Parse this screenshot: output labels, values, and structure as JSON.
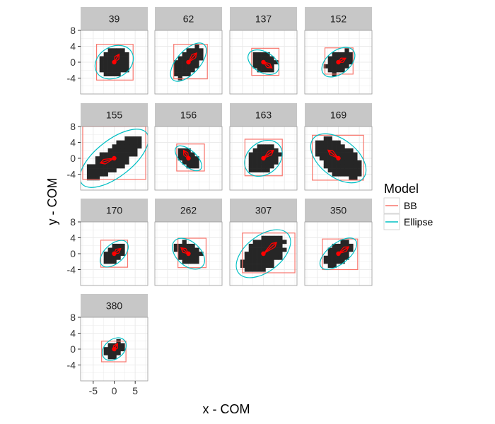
{
  "chart_data": {
    "type": "faceted-shape-plot",
    "xlabel": "x - COM",
    "ylabel": "y - COM",
    "xlim": [
      -8,
      8
    ],
    "ylim": [
      -8,
      8
    ],
    "x_ticks": [
      -5,
      0,
      5
    ],
    "x_tick_labels": [
      "-5",
      "0",
      "5"
    ],
    "y_ticks": [
      8,
      4,
      0,
      -4
    ],
    "y_tick_labels": [
      "8",
      "4",
      "0",
      "-4"
    ],
    "legend": {
      "title": "Model",
      "position": "right",
      "entries": [
        {
          "label": "BB",
          "color": "#F8766D"
        },
        {
          "label": "Ellipse",
          "color": "#00BFC4"
        }
      ]
    },
    "colors": {
      "bb": "#F8766D",
      "ellipse": "#00BFC4",
      "fill": "#262626",
      "arrow": "#FF0000",
      "strip": "#C7C7C7",
      "grid": "#ECECEC"
    },
    "panels": [
      {
        "id": "39",
        "bb": [
          -4.2,
          4.5,
          -4.5,
          4.5
        ],
        "ellipse": {
          "cx": 0,
          "cy": 0,
          "rx": 4.8,
          "ry": 3.9,
          "angle": 30
        },
        "arrow_angle": 60,
        "arrow_len": 2.3,
        "blob": {
          "rx": 4.2,
          "ry": 3.6,
          "angle": 30
        }
      },
      {
        "id": "62",
        "bb": [
          -3.5,
          4.5,
          -4.2,
          4.5
        ],
        "ellipse": {
          "cx": 0,
          "cy": 0,
          "rx": 5.6,
          "ry": 2.9,
          "angle": 48
        },
        "arrow_angle": 50,
        "arrow_len": 3.0,
        "blob": {
          "rx": 5.0,
          "ry": 2.6,
          "angle": 48
        }
      },
      {
        "id": "137",
        "bb": [
          -2.8,
          3.7,
          -3.3,
          3.5
        ],
        "ellipse": {
          "cx": 0,
          "cy": 0,
          "rx": 4.0,
          "ry": 2.6,
          "angle": -30
        },
        "arrow_angle": -35,
        "arrow_len": 2.5,
        "blob": {
          "rx": 3.5,
          "ry": 2.3,
          "angle": -30
        }
      },
      {
        "id": "152",
        "bb": [
          -3.2,
          3.5,
          -3.0,
          3.6
        ],
        "ellipse": {
          "cx": 0,
          "cy": 0,
          "rx": 4.5,
          "ry": 2.9,
          "angle": 38
        },
        "arrow_angle": 30,
        "arrow_len": 2.0,
        "blob": {
          "rx": 3.9,
          "ry": 2.5,
          "angle": 38
        }
      },
      {
        "id": "155",
        "bb": [
          -7.5,
          7.5,
          -5.3,
          8.0
        ],
        "ellipse": {
          "cx": 0,
          "cy": 0,
          "rx": 9.8,
          "ry": 4.6,
          "angle": 38
        },
        "arrow_angle": 200,
        "arrow_len": 3.5,
        "blob": {
          "rx": 8.5,
          "ry": 3.0,
          "angle": 38
        }
      },
      {
        "id": "156",
        "bb": [
          -2.8,
          3.8,
          -3.2,
          3.6
        ],
        "ellipse": {
          "cx": 0,
          "cy": 0,
          "rx": 3.9,
          "ry": 2.0,
          "angle": -42
        },
        "arrow_angle": 120,
        "arrow_len": 2.3,
        "blob": {
          "rx": 3.4,
          "ry": 1.8,
          "angle": -42
        }
      },
      {
        "id": "163",
        "bb": [
          -4.4,
          4.5,
          -4.4,
          4.8
        ],
        "ellipse": {
          "cx": 0,
          "cy": 0,
          "rx": 4.9,
          "ry": 4.0,
          "angle": 40
        },
        "arrow_angle": 40,
        "arrow_len": 3.1,
        "blob": {
          "rx": 4.4,
          "ry": 3.6,
          "angle": 40
        }
      },
      {
        "id": "169",
        "bb": [
          -6.2,
          6.0,
          -5.5,
          5.8
        ],
        "ellipse": {
          "cx": 0,
          "cy": 0,
          "rx": 7.6,
          "ry": 4.7,
          "angle": -38
        },
        "arrow_angle": 140,
        "arrow_len": 3.2,
        "blob": {
          "rx": 6.8,
          "ry": 4.0,
          "angle": -38
        }
      },
      {
        "id": "170",
        "bb": [
          -3.2,
          3.2,
          -3.4,
          3.4
        ],
        "ellipse": {
          "cx": 0,
          "cy": 0,
          "rx": 4.0,
          "ry": 2.4,
          "angle": 42
        },
        "arrow_angle": 40,
        "arrow_len": 2.0,
        "blob": {
          "rx": 3.5,
          "ry": 2.1,
          "angle": 42
        }
      },
      {
        "id": "262",
        "bb": [
          -2.5,
          4.2,
          -3.5,
          3.9
        ],
        "ellipse": {
          "cx": 0,
          "cy": 0,
          "rx": 4.5,
          "ry": 3.0,
          "angle": -42
        },
        "arrow_angle": 140,
        "arrow_len": 2.3,
        "blob": {
          "rx": 3.8,
          "ry": 2.5,
          "angle": -42
        }
      },
      {
        "id": "307",
        "bb": [
          -5.0,
          7.5,
          -4.8,
          5.2
        ],
        "ellipse": {
          "cx": 0,
          "cy": 0,
          "rx": 7.5,
          "ry": 4.5,
          "angle": 38
        },
        "arrow_angle": 42,
        "arrow_len": 4.2,
        "blob": {
          "rx": 6.4,
          "ry": 3.8,
          "angle": 38
        }
      },
      {
        "id": "350",
        "bb": [
          -3.8,
          4.6,
          -4.0,
          3.7
        ],
        "ellipse": {
          "cx": 0,
          "cy": 0,
          "rx": 5.2,
          "ry": 2.6,
          "angle": 38
        },
        "arrow_angle": 35,
        "arrow_len": 3.0,
        "blob": {
          "rx": 4.5,
          "ry": 2.3,
          "angle": 38
        }
      },
      {
        "id": "380",
        "bb": [
          -3.0,
          2.8,
          -3.2,
          2.0
        ],
        "ellipse": {
          "cx": 0,
          "cy": 0,
          "rx": 3.2,
          "ry": 2.4,
          "angle": 40
        },
        "arrow_angle": 60,
        "arrow_len": 1.6,
        "blob": {
          "rx": 2.6,
          "ry": 2.0,
          "angle": 40
        }
      }
    ]
  }
}
